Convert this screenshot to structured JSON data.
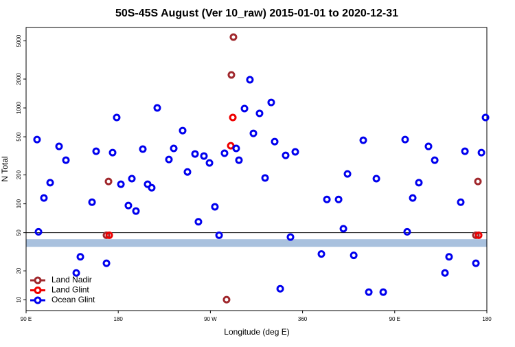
{
  "chart_data": {
    "type": "scatter",
    "title": "50S-45S August (Ver 10_raw)   2015-01-01 to 2020-12-31",
    "x_label": "Longitude (deg E)",
    "y_label": "N Total",
    "xlim": [
      90,
      540
    ],
    "ylim": [
      7.7,
      6900
    ],
    "log_y": true,
    "xticks": [
      {
        "value": 90,
        "label": "90 E"
      },
      180,
      {
        "value": 270,
        "label": "90 W"
      },
      360,
      {
        "value": 450,
        "label": "90 E"
      },
      {
        "value": 540,
        "label": "180"
      }
    ],
    "yticks": [
      10,
      20,
      50,
      100,
      200,
      500,
      1000,
      2000,
      5000
    ],
    "hline": 50,
    "band": [
      35.6,
      42.7
    ],
    "band_color": "#a9c1de",
    "legend": "bottom-left",
    "series": [
      {
        "name": "Land Nadir",
        "color": "#a0282d",
        "x": [
          292.5,
          290.5,
          170.5,
          168.5,
          285.8,
          531.3,
          529.3
        ],
        "values": [
          5475,
          2208,
          171,
          47,
          10,
          171,
          47
        ]
      },
      {
        "name": "Land Glint",
        "color": "#ee0000",
        "x": [
          291.9,
          289.9,
          171.2,
          532.0
        ],
        "values": [
          794,
          403,
          47,
          47
        ]
      },
      {
        "name": "Ocean Glint",
        "color": "#0000ee",
        "x": [
          100.7,
          102.1,
          107.4,
          113.5,
          122.2,
          128.9,
          139.0,
          143.0,
          154.4,
          158.4,
          168.5,
          174.5,
          178.5,
          182.6,
          189.9,
          193.3,
          197.3,
          204.0,
          208.7,
          212.7,
          218.1,
          229.5,
          234.2,
          242.9,
          247.6,
          255.0,
          258.3,
          263.7,
          269.1,
          274.4,
          278.5,
          283.8,
          295.2,
          297.9,
          303.3,
          308.6,
          312.0,
          318.0,
          323.4,
          329.4,
          332.8,
          338.2,
          343.5,
          348.2,
          352.9,
          378.4,
          383.8,
          395.2,
          399.9,
          403.9,
          410.0,
          419.3,
          424.7,
          432.1,
          438.8,
          460.2,
          462.2,
          467.6,
          473.6,
          483.0,
          489.1,
          499.1,
          503.1,
          514.5,
          518.6,
          529.3,
          534.7,
          538.7
        ],
        "values": [
          468,
          51,
          115,
          166,
          397,
          285,
          19,
          28,
          104,
          353,
          24,
          342,
          794,
          160,
          96,
          183,
          84,
          372,
          160,
          147,
          1000,
          290,
          378,
          580,
          215,
          331,
          65,
          315,
          267,
          93,
          47,
          337,
          378,
          285,
          984,
          1967,
          543,
          877,
          186,
          1141,
          445,
          13,
          320,
          45,
          348,
          30,
          111,
          111,
          55,
          205,
          29,
          460,
          12,
          183,
          12,
          468,
          51,
          115,
          166,
          397,
          285,
          19,
          28,
          104,
          353,
          24,
          342,
          794
        ]
      }
    ]
  }
}
